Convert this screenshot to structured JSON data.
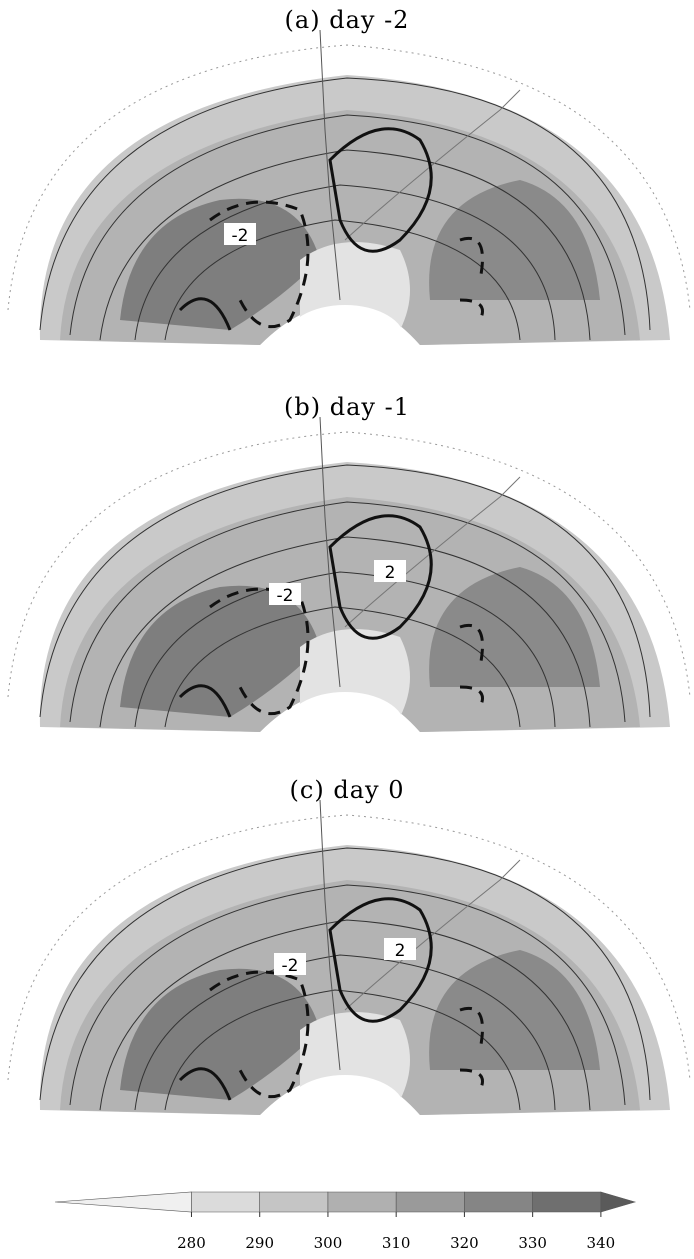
{
  "panels": [
    {
      "title": "(a) day -2",
      "contour_labels": [
        "-2"
      ]
    },
    {
      "title": "(b) day -1",
      "contour_labels": [
        "-2",
        "2"
      ]
    },
    {
      "title": "(c) day 0",
      "contour_labels": [
        "-2",
        "2"
      ]
    }
  ],
  "colorbar": {
    "lim": [
      260,
      345
    ],
    "ticks": [
      280,
      290,
      300,
      310,
      320,
      330,
      340
    ]
  }
}
